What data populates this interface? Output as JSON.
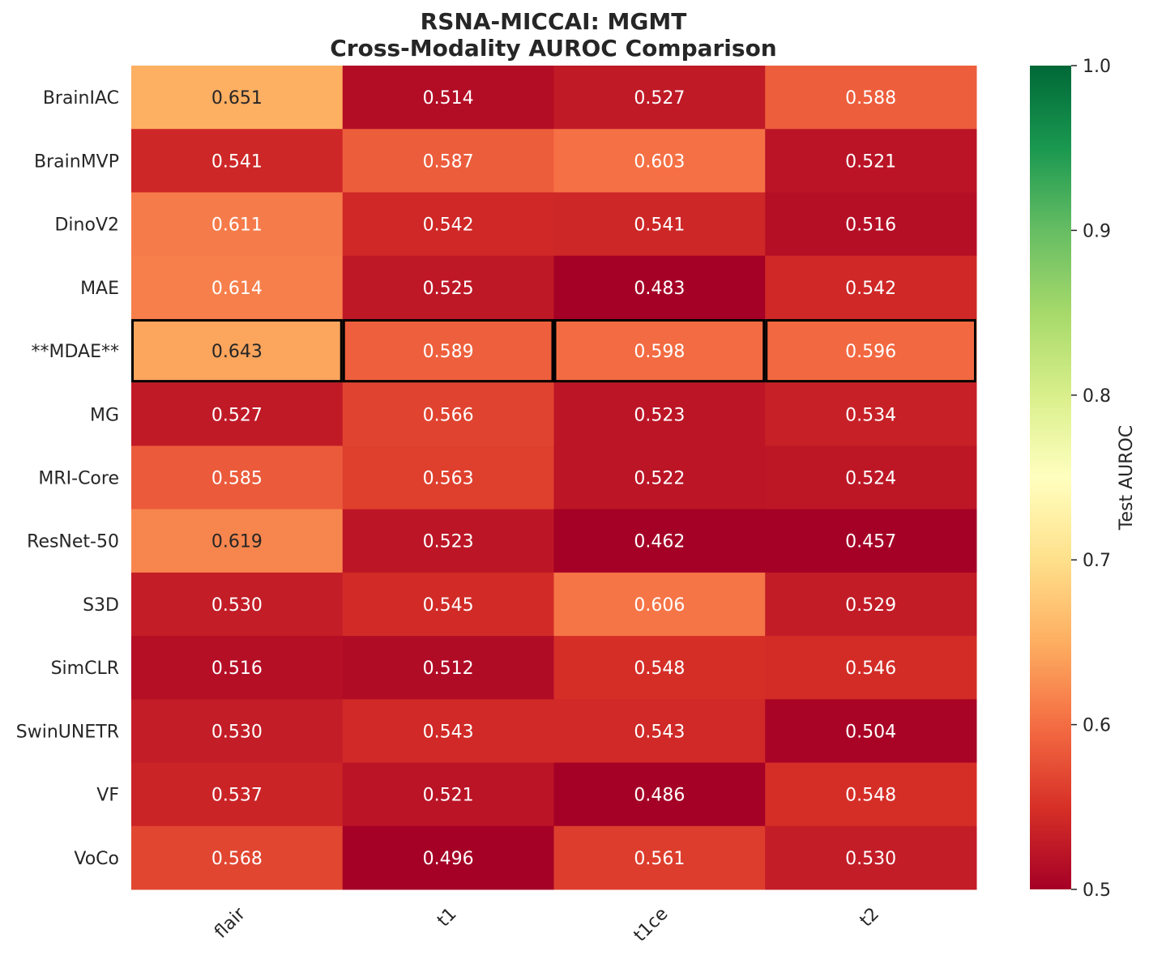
{
  "chart_data": {
    "type": "heatmap",
    "title_lines": [
      "RSNA-MICCAI: MGMT",
      "Cross-Modality AUROC Comparison"
    ],
    "rows": [
      "BrainIAC",
      "BrainMVP",
      "DinoV2",
      "MAE",
      "**MDAE**",
      "MG",
      "MRI-Core",
      "ResNet-50",
      "S3D",
      "SimCLR",
      "SwinUNETR",
      "VF",
      "VoCo"
    ],
    "columns": [
      "flair",
      "t1",
      "t1ce",
      "t2"
    ],
    "values": [
      [
        0.651,
        0.514,
        0.527,
        0.588
      ],
      [
        0.541,
        0.587,
        0.603,
        0.521
      ],
      [
        0.611,
        0.542,
        0.541,
        0.516
      ],
      [
        0.614,
        0.525,
        0.483,
        0.542
      ],
      [
        0.643,
        0.589,
        0.598,
        0.596
      ],
      [
        0.527,
        0.566,
        0.523,
        0.534
      ],
      [
        0.585,
        0.563,
        0.522,
        0.524
      ],
      [
        0.619,
        0.523,
        0.462,
        0.457
      ],
      [
        0.53,
        0.545,
        0.606,
        0.529
      ],
      [
        0.516,
        0.512,
        0.548,
        0.546
      ],
      [
        0.53,
        0.543,
        0.543,
        0.504
      ],
      [
        0.537,
        0.521,
        0.486,
        0.548
      ],
      [
        0.568,
        0.496,
        0.561,
        0.53
      ]
    ],
    "highlight_row": "**MDAE**",
    "colormap": "RdYlGn",
    "vmin": 0.5,
    "vmax": 1.0,
    "colorbar": {
      "label": "Test AUROC",
      "ticks": [
        "0.5",
        "0.6",
        "0.7",
        "0.8",
        "0.9",
        "1.0"
      ]
    }
  }
}
